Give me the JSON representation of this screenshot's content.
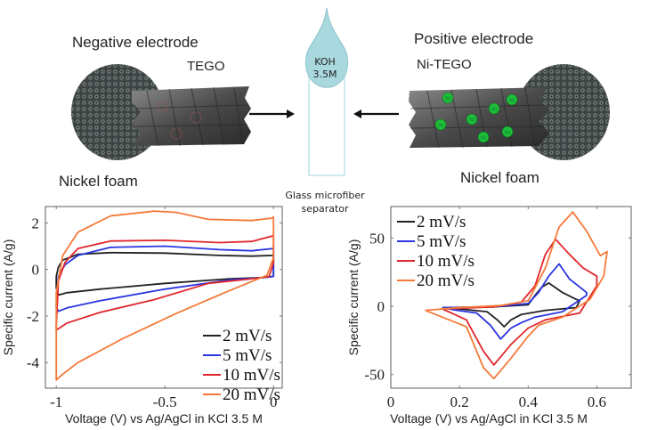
{
  "schematic": {
    "negative": {
      "title": "Negative electrode",
      "material": "TEGO",
      "substrate": "Nickel foam"
    },
    "positive": {
      "title": "Positive electrode",
      "material": "Ni-TEGO",
      "substrate": "Nickel foam",
      "ion_label": "Ni",
      "ion_color": "#1fbf3a"
    },
    "electrolyte": {
      "line1": "KOH",
      "line2": "3.5M",
      "color": "#a9d8df"
    },
    "separator": {
      "line1": "Glass microfiber",
      "line2": "separator",
      "color": "#bfe3e6"
    }
  },
  "chart_data": [
    {
      "type": "line",
      "title": "",
      "xlabel": "Voltage (V) vs Ag/AgCl in KCl 3.5 M",
      "ylabel": "Specific current (A/g)",
      "xlim": [
        -1.05,
        0.04
      ],
      "ylim": [
        -5.1,
        2.7
      ],
      "xticks": [
        -1,
        -0.5,
        0
      ],
      "xtick_labels": [
        "-1",
        "-0.5",
        "0"
      ],
      "yticks": [
        -4,
        -2,
        0,
        2
      ],
      "ytick_labels": [
        "-4",
        "-2",
        "0",
        "2"
      ],
      "grid": false,
      "legend_position": "bottom-right",
      "series": [
        {
          "name": "2 mV/s",
          "color": "#222222",
          "x": [
            -1.0,
            -0.99,
            -0.97,
            -0.9,
            -0.75,
            -0.5,
            -0.25,
            -0.1,
            0.0,
            0.0,
            0.0,
            -0.05,
            -0.2,
            -0.5,
            -0.8,
            -0.95,
            -0.99,
            -1.0,
            -1.0
          ],
          "y": [
            -0.3,
            0.1,
            0.4,
            0.65,
            0.72,
            0.7,
            0.6,
            0.57,
            0.6,
            0.1,
            -0.3,
            -0.35,
            -0.4,
            -0.6,
            -0.85,
            -1.0,
            -1.1,
            -0.8,
            -0.3
          ]
        },
        {
          "name": "5 mV/s",
          "color": "#2a35e0",
          "x": [
            -1.0,
            -0.99,
            -0.96,
            -0.9,
            -0.75,
            -0.5,
            -0.25,
            -0.1,
            0.0,
            0.0,
            0.0,
            -0.05,
            -0.2,
            -0.5,
            -0.8,
            -0.95,
            -0.99,
            -1.0,
            -1.0
          ],
          "y": [
            -1.5,
            -0.3,
            0.2,
            0.6,
            0.95,
            1.0,
            0.85,
            0.8,
            0.9,
            0.3,
            -0.3,
            -0.35,
            -0.45,
            -0.85,
            -1.35,
            -1.65,
            -1.8,
            -1.6,
            -1.5
          ]
        },
        {
          "name": "10 mV/s",
          "color": "#e0262c",
          "x": [
            -1.0,
            -0.99,
            -0.96,
            -0.9,
            -0.75,
            -0.5,
            -0.25,
            -0.1,
            0.0,
            0.0,
            -0.02,
            -0.1,
            -0.3,
            -0.55,
            -0.8,
            -0.95,
            -0.99,
            -1.0,
            -1.0
          ],
          "y": [
            -2.4,
            -0.5,
            0.3,
            0.9,
            1.22,
            1.25,
            1.15,
            1.2,
            1.45,
            0.3,
            -0.3,
            -0.4,
            -0.6,
            -1.3,
            -1.85,
            -2.3,
            -2.55,
            -2.6,
            -2.4
          ]
        },
        {
          "name": "20 mV/s",
          "color": "#f47a3a",
          "x": [
            -1.0,
            -1.0,
            -0.97,
            -0.9,
            -0.75,
            -0.55,
            -0.45,
            -0.3,
            -0.1,
            -0.01,
            0.0,
            0.0,
            -0.03,
            -0.2,
            -0.45,
            -0.7,
            -0.9,
            -0.97,
            -1.0,
            -1.0
          ],
          "y": [
            -4.7,
            -1.0,
            0.6,
            1.6,
            2.3,
            2.5,
            2.45,
            2.15,
            2.1,
            2.2,
            2.25,
            0.5,
            -0.25,
            -0.9,
            -1.9,
            -3.0,
            -4.0,
            -4.5,
            -4.75,
            -4.7
          ]
        }
      ]
    },
    {
      "type": "line",
      "title": "",
      "xlabel": "Voltage (V) vs Ag/AgCl in KCl 3.5 M",
      "ylabel": "Specific current (A/g)",
      "xlim": [
        0,
        0.7
      ],
      "ylim": [
        -60,
        73
      ],
      "xticks": [
        0,
        0.2,
        0.4,
        0.6
      ],
      "xtick_labels": [
        "0",
        "0.2",
        "0.4",
        "0.6"
      ],
      "yticks": [
        -50,
        0,
        50
      ],
      "ytick_labels": [
        "-50",
        "0",
        "50"
      ],
      "grid": false,
      "legend_position": "top-left",
      "series": [
        {
          "name": "2 mV/s",
          "color": "#222222",
          "x": [
            0.15,
            0.3,
            0.4,
            0.42,
            0.44,
            0.46,
            0.5,
            0.54,
            0.55,
            0.54,
            0.45,
            0.38,
            0.35,
            0.33,
            0.31,
            0.28,
            0.2,
            0.15
          ],
          "y": [
            -1,
            -0.5,
            1,
            8,
            14,
            17,
            10,
            5,
            4,
            -1,
            -3,
            -6,
            -10,
            -15,
            -10,
            -4,
            -2,
            -1
          ]
        },
        {
          "name": "5 mV/s",
          "color": "#2a35e0",
          "x": [
            0.15,
            0.3,
            0.4,
            0.43,
            0.46,
            0.49,
            0.52,
            0.57,
            0.57,
            0.5,
            0.42,
            0.38,
            0.35,
            0.32,
            0.29,
            0.25,
            0.18,
            0.15
          ],
          "y": [
            -1,
            -0.5,
            2,
            10,
            22,
            31,
            20,
            10,
            8,
            -4,
            -8,
            -12,
            -16,
            -24,
            -14,
            -5,
            -2.5,
            -1
          ]
        },
        {
          "name": "10 mV/s",
          "color": "#e0262c",
          "x": [
            0.15,
            0.3,
            0.38,
            0.42,
            0.45,
            0.48,
            0.52,
            0.56,
            0.6,
            0.6,
            0.55,
            0.45,
            0.4,
            0.35,
            0.3,
            0.27,
            0.22,
            0.15
          ],
          "y": [
            -2,
            -0.5,
            3,
            15,
            38,
            49,
            38,
            28,
            22,
            15,
            -5,
            -10,
            -16,
            -28,
            -43,
            -33,
            -10,
            -2
          ]
        },
        {
          "name": "20 mV/s",
          "color": "#f47a3a",
          "x": [
            0.1,
            0.2,
            0.32,
            0.4,
            0.45,
            0.49,
            0.53,
            0.57,
            0.61,
            0.63,
            0.62,
            0.58,
            0.5,
            0.43,
            0.4,
            0.35,
            0.3,
            0.27,
            0.22,
            0.1
          ],
          "y": [
            -3,
            -1,
            0.5,
            4,
            28,
            58,
            69,
            55,
            37,
            40,
            22,
            5,
            -8,
            -14,
            -22,
            -38,
            -53,
            -45,
            -15,
            -3
          ]
        }
      ]
    }
  ]
}
